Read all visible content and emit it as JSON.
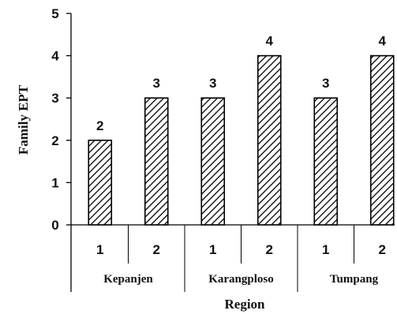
{
  "chart_data": {
    "type": "bar",
    "title": "",
    "xlabel": "Region",
    "ylabel": "Family EPT",
    "ylim": [
      0,
      5
    ],
    "yticks": [
      "0",
      "1",
      "2",
      "3",
      "4",
      "5"
    ],
    "groups": [
      "Kepanjen",
      "Karangploso",
      "Tumpang"
    ],
    "categories": [
      "1",
      "2",
      "1",
      "2",
      "1",
      "2"
    ],
    "values": [
      2,
      3,
      3,
      4,
      3,
      4
    ],
    "data_labels": [
      "2",
      "3",
      "3",
      "4",
      "3",
      "4"
    ],
    "bar_fill": "diagonal-hatch",
    "colors": {
      "bar_stroke": "#000000",
      "hatch": "#000000",
      "axis": "#000000"
    },
    "grid": false,
    "legend": "none"
  }
}
